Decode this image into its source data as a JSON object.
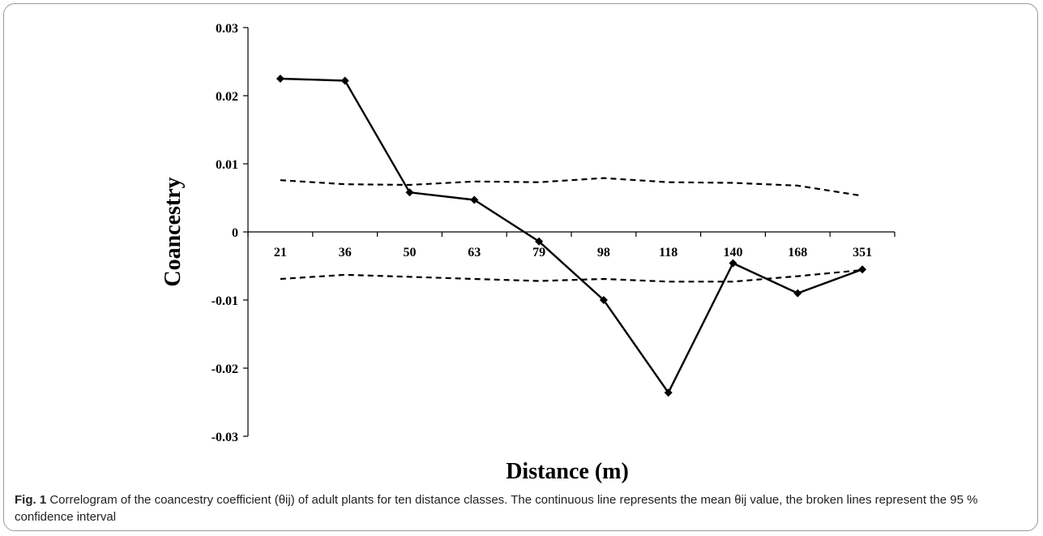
{
  "chart_data": {
    "type": "line",
    "categories": [
      "21",
      "36",
      "50",
      "63",
      "79",
      "98",
      "118",
      "140",
      "168",
      "351"
    ],
    "xlabel": "Distance (m)",
    "ylabel": "Coancestry",
    "ylim": [
      -0.03,
      0.03
    ],
    "yticks": [
      0.03,
      0.02,
      0.01,
      0,
      -0.01,
      -0.02,
      -0.03
    ],
    "ytick_labels": [
      "0.03",
      "0.02",
      "0.01",
      "0",
      "-0.01",
      "-0.02",
      "-0.03"
    ],
    "grid": false,
    "series": [
      {
        "style": "solid-with-diamond-markers",
        "color": "#000000",
        "values": [
          0.0225,
          0.0222,
          0.0058,
          0.0047,
          -0.0014,
          -0.01,
          -0.0236,
          -0.0046,
          -0.009,
          -0.0055
        ]
      },
      {
        "style": "dashed",
        "color": "#000000",
        "values": [
          0.0076,
          0.007,
          0.0069,
          0.0074,
          0.0073,
          0.0079,
          0.0073,
          0.0072,
          0.0068,
          0.0053
        ]
      },
      {
        "style": "dashed",
        "color": "#000000",
        "values": [
          -0.0069,
          -0.0063,
          -0.0066,
          -0.0069,
          -0.0072,
          -0.0069,
          -0.0073,
          -0.0073,
          -0.0065,
          -0.0056
        ]
      }
    ]
  },
  "caption": {
    "label": "Fig. 1",
    "text": "Correlogram of the coancestry coefficient (θij) of adult plants for ten distance classes. The continuous line represents the mean θij value, the broken lines represent the 95 % confidence interval"
  }
}
